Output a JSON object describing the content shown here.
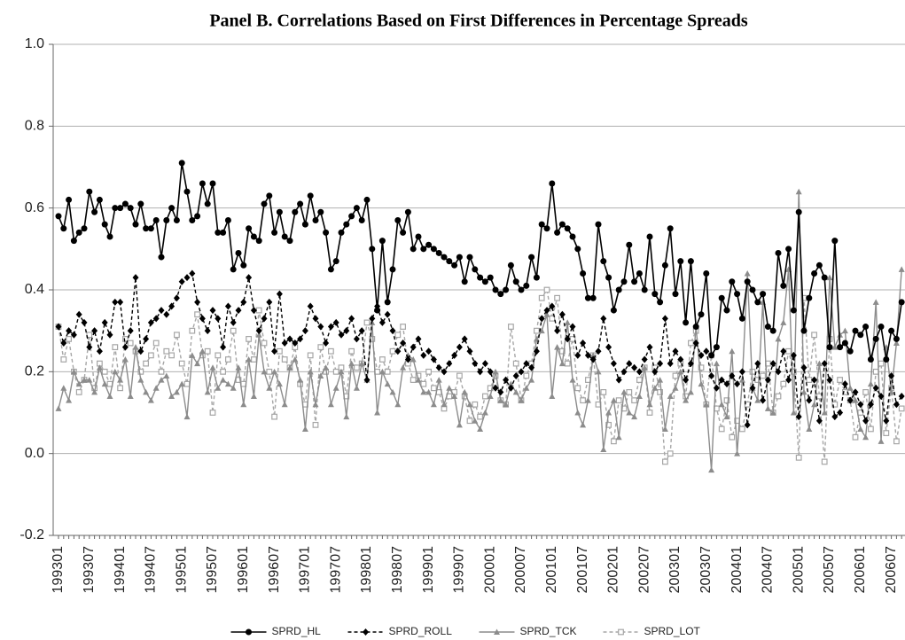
{
  "chart_data": {
    "type": "line",
    "title": "Panel B. Correlations Based on First Differences in Percentage Spreads",
    "categories": [
      "199301",
      null,
      null,
      null,
      null,
      null,
      "199307",
      null,
      null,
      null,
      null,
      null,
      "199401",
      null,
      null,
      null,
      null,
      null,
      "199407",
      null,
      null,
      null,
      null,
      null,
      "199501",
      null,
      null,
      null,
      null,
      null,
      "199507",
      null,
      null,
      null,
      null,
      null,
      "199601",
      null,
      null,
      null,
      null,
      null,
      "199607",
      null,
      null,
      null,
      null,
      null,
      "199701",
      null,
      null,
      null,
      null,
      null,
      "199707",
      null,
      null,
      null,
      null,
      null,
      "199801",
      null,
      null,
      null,
      null,
      null,
      "199807",
      null,
      null,
      null,
      null,
      null,
      "199901",
      null,
      null,
      null,
      null,
      null,
      "199907",
      null,
      null,
      null,
      null,
      null,
      "200001",
      null,
      null,
      null,
      null,
      null,
      "200007",
      null,
      null,
      null,
      null,
      null,
      "200101",
      null,
      null,
      null,
      null,
      null,
      "200107",
      null,
      null,
      null,
      null,
      null,
      "200201",
      null,
      null,
      null,
      null,
      null,
      "200207",
      null,
      null,
      null,
      null,
      null,
      "200301",
      null,
      null,
      null,
      null,
      null,
      "200307",
      null,
      null,
      null,
      null,
      null,
      "200401",
      null,
      null,
      null,
      null,
      null,
      "200407",
      null,
      null,
      null,
      null,
      null,
      "200501",
      null,
      null,
      null,
      null,
      null,
      "200507",
      null,
      null,
      null,
      null,
      null,
      "200601",
      null,
      null,
      null,
      null,
      null,
      "200607",
      null,
      null
    ],
    "ylim": [
      -0.2,
      1.0
    ],
    "yticks": [
      {
        "value": -0.2,
        "label": "-0.2"
      },
      {
        "value": 0,
        "label": "0.0"
      },
      {
        "value": 0.2,
        "label": "0.2"
      },
      {
        "value": 0.4,
        "label": "0.4"
      },
      {
        "value": 0.6,
        "label": "0.6"
      },
      {
        "value": 0.8,
        "label": "0.8"
      },
      {
        "value": 1.0,
        "label": "1.0"
      }
    ],
    "grid": true,
    "legend": "bottom",
    "series": [
      {
        "name": "SPRD_HL",
        "color": "#000000",
        "dashed": false,
        "marker": "circle",
        "values": [
          0.58,
          0.55,
          0.62,
          0.52,
          0.54,
          0.55,
          0.64,
          0.59,
          0.62,
          0.56,
          0.53,
          0.6,
          0.6,
          0.61,
          0.6,
          0.56,
          0.61,
          0.55,
          0.55,
          0.57,
          0.48,
          0.57,
          0.6,
          0.57,
          0.71,
          0.64,
          0.57,
          0.58,
          0.66,
          0.61,
          0.66,
          0.54,
          0.54,
          0.57,
          0.45,
          0.49,
          0.46,
          0.55,
          0.53,
          0.52,
          0.61,
          0.63,
          0.54,
          0.59,
          0.53,
          0.52,
          0.59,
          0.61,
          0.56,
          0.63,
          0.57,
          0.59,
          0.54,
          0.45,
          0.47,
          0.54,
          0.56,
          0.58,
          0.6,
          0.57,
          0.62,
          0.5,
          0.35,
          0.52,
          0.37,
          0.45,
          0.57,
          0.54,
          0.59,
          0.5,
          0.53,
          0.5,
          0.51,
          0.5,
          0.49,
          0.48,
          0.47,
          0.46,
          0.48,
          0.42,
          0.48,
          0.45,
          0.43,
          0.42,
          0.43,
          0.4,
          0.39,
          0.4,
          0.46,
          0.42,
          0.4,
          0.41,
          0.48,
          0.43,
          0.56,
          0.55,
          0.66,
          0.54,
          0.56,
          0.55,
          0.53,
          0.5,
          0.44,
          0.38,
          0.38,
          0.56,
          0.47,
          0.43,
          0.35,
          0.4,
          0.42,
          0.51,
          0.42,
          0.44,
          0.4,
          0.53,
          0.39,
          0.37,
          0.46,
          0.55,
          0.39,
          0.47,
          0.32,
          0.47,
          0.31,
          0.34,
          0.44,
          0.24,
          0.26,
          0.38,
          0.35,
          0.42,
          0.39,
          0.33,
          0.42,
          0.4,
          0.37,
          0.39,
          0.31,
          0.3,
          0.49,
          0.41,
          0.5,
          0.35,
          0.59,
          0.3,
          0.38,
          0.44,
          0.46,
          0.43,
          0.26,
          0.52,
          0.26,
          0.27,
          0.25,
          0.3,
          0.29,
          0.31,
          0.23,
          0.28,
          0.31,
          0.23,
          0.3,
          0.28,
          0.37
        ]
      },
      {
        "name": "SPRD_ROLL",
        "color": "#000000",
        "dashed": true,
        "marker": "diamond",
        "values": [
          0.31,
          0.27,
          0.3,
          0.29,
          0.34,
          0.32,
          0.26,
          0.3,
          0.25,
          0.32,
          0.29,
          0.37,
          0.37,
          0.26,
          0.3,
          0.43,
          0.25,
          0.28,
          0.32,
          0.33,
          0.35,
          0.34,
          0.36,
          0.38,
          0.42,
          0.43,
          0.44,
          0.37,
          0.33,
          0.3,
          0.35,
          0.33,
          0.26,
          0.36,
          0.32,
          0.35,
          0.37,
          0.43,
          0.35,
          0.3,
          0.33,
          0.37,
          0.25,
          0.39,
          0.27,
          0.28,
          0.27,
          0.28,
          0.3,
          0.36,
          0.33,
          0.31,
          0.27,
          0.31,
          0.32,
          0.29,
          0.3,
          0.33,
          0.28,
          0.3,
          0.18,
          0.33,
          0.36,
          0.32,
          0.34,
          0.3,
          0.25,
          0.27,
          0.23,
          0.26,
          0.28,
          0.24,
          0.25,
          0.23,
          0.21,
          0.2,
          0.22,
          0.24,
          0.26,
          0.28,
          0.25,
          0.22,
          0.2,
          0.22,
          0.2,
          0.16,
          0.15,
          0.18,
          0.16,
          0.19,
          0.2,
          0.22,
          0.21,
          0.25,
          0.33,
          0.35,
          0.36,
          0.3,
          0.34,
          0.28,
          0.31,
          0.24,
          0.27,
          0.24,
          0.23,
          0.25,
          0.33,
          0.26,
          0.22,
          0.18,
          0.2,
          0.22,
          0.21,
          0.2,
          0.23,
          0.26,
          0.2,
          0.22,
          0.33,
          0.22,
          0.25,
          0.23,
          0.18,
          0.22,
          0.27,
          0.24,
          0.25,
          0.19,
          0.16,
          0.18,
          0.17,
          0.19,
          0.17,
          0.2,
          0.07,
          0.16,
          0.22,
          0.13,
          0.18,
          0.22,
          0.2,
          0.25,
          0.18,
          0.24,
          0.09,
          0.21,
          0.13,
          0.18,
          0.08,
          0.22,
          0.18,
          0.09,
          0.1,
          0.17,
          0.13,
          0.15,
          0.12,
          0.08,
          0.12,
          0.16,
          0.14,
          0.08,
          0.19,
          0.12,
          0.14
        ]
      },
      {
        "name": "SPRD_TCK",
        "color": "#8c8c8c",
        "dashed": false,
        "marker": "triangle",
        "values": [
          0.11,
          0.16,
          0.13,
          0.2,
          0.17,
          0.18,
          0.18,
          0.15,
          0.21,
          0.17,
          0.14,
          0.2,
          0.18,
          0.23,
          0.14,
          0.26,
          0.18,
          0.15,
          0.13,
          0.16,
          0.18,
          0.19,
          0.14,
          0.15,
          0.17,
          0.09,
          0.24,
          0.22,
          0.25,
          0.15,
          0.21,
          0.16,
          0.18,
          0.17,
          0.16,
          0.21,
          0.12,
          0.23,
          0.14,
          0.29,
          0.2,
          0.16,
          0.2,
          0.17,
          0.12,
          0.21,
          0.23,
          0.18,
          0.06,
          0.2,
          0.12,
          0.19,
          0.21,
          0.12,
          0.16,
          0.2,
          0.09,
          0.22,
          0.16,
          0.22,
          0.18,
          0.32,
          0.1,
          0.2,
          0.17,
          0.15,
          0.12,
          0.21,
          0.24,
          0.23,
          0.18,
          0.15,
          0.15,
          0.12,
          0.18,
          0.12,
          0.16,
          0.14,
          0.07,
          0.15,
          0.12,
          0.08,
          0.06,
          0.1,
          0.14,
          0.2,
          0.13,
          0.12,
          0.17,
          0.15,
          0.13,
          0.16,
          0.18,
          0.28,
          0.3,
          0.34,
          0.14,
          0.26,
          0.22,
          0.32,
          0.18,
          0.1,
          0.07,
          0.13,
          0.24,
          0.2,
          0.01,
          0.1,
          0.13,
          0.04,
          0.15,
          0.1,
          0.09,
          0.14,
          0.21,
          0.12,
          0.16,
          0.18,
          0.06,
          0.14,
          0.16,
          0.2,
          0.13,
          0.15,
          0.31,
          0.17,
          0.12,
          -0.04,
          0.22,
          0.12,
          0.09,
          0.25,
          0.0,
          0.18,
          0.44,
          0.16,
          0.13,
          0.37,
          0.11,
          0.1,
          0.28,
          0.32,
          0.45,
          0.1,
          0.64,
          0.15,
          0.06,
          0.12,
          0.22,
          0.1,
          0.43,
          0.26,
          0.29,
          0.3,
          0.16,
          0.13,
          0.06,
          0.04,
          0.17,
          0.37,
          0.03,
          0.26,
          0.15,
          0.27,
          0.45
        ]
      },
      {
        "name": "SPRD_LOT",
        "color": "#a6a6a6",
        "dashed": true,
        "marker": "square",
        "values": [
          0.31,
          0.23,
          0.28,
          0.2,
          0.15,
          0.18,
          0.29,
          0.16,
          0.22,
          0.2,
          0.17,
          0.26,
          0.16,
          0.28,
          0.27,
          0.25,
          0.2,
          0.22,
          0.24,
          0.27,
          0.2,
          0.25,
          0.24,
          0.29,
          0.22,
          0.17,
          0.3,
          0.34,
          0.24,
          0.25,
          0.1,
          0.24,
          0.2,
          0.23,
          0.3,
          0.18,
          0.17,
          0.28,
          0.23,
          0.35,
          0.27,
          0.2,
          0.09,
          0.25,
          0.23,
          0.21,
          0.26,
          0.17,
          0.12,
          0.24,
          0.07,
          0.26,
          0.2,
          0.25,
          0.2,
          0.21,
          0.14,
          0.25,
          0.21,
          0.22,
          0.32,
          0.28,
          0.2,
          0.23,
          0.2,
          0.25,
          0.29,
          0.31,
          0.22,
          0.18,
          0.19,
          0.17,
          0.2,
          0.16,
          0.15,
          0.11,
          0.14,
          0.15,
          0.19,
          0.14,
          0.08,
          0.12,
          0.09,
          0.14,
          0.16,
          0.19,
          0.13,
          0.12,
          0.31,
          0.22,
          0.13,
          0.19,
          0.22,
          0.3,
          0.38,
          0.4,
          0.33,
          0.38,
          0.25,
          0.22,
          0.28,
          0.16,
          0.13,
          0.18,
          0.24,
          0.12,
          0.15,
          0.07,
          0.03,
          0.13,
          0.11,
          0.15,
          0.13,
          0.18,
          0.21,
          0.1,
          0.21,
          0.15,
          -0.02,
          0.0,
          0.19,
          0.22,
          0.14,
          0.27,
          0.3,
          0.21,
          0.12,
          0.24,
          0.11,
          0.06,
          0.13,
          0.04,
          0.08,
          0.06,
          0.12,
          0.2,
          0.18,
          0.19,
          0.22,
          0.1,
          0.14,
          0.17,
          0.25,
          0.2,
          -0.01,
          0.38,
          0.18,
          0.29,
          0.14,
          -0.02,
          0.28,
          0.12,
          0.18,
          0.15,
          0.13,
          0.04,
          0.1,
          0.15,
          0.06,
          0.2,
          0.22,
          0.05,
          0.16,
          0.03,
          0.11
        ]
      }
    ]
  }
}
